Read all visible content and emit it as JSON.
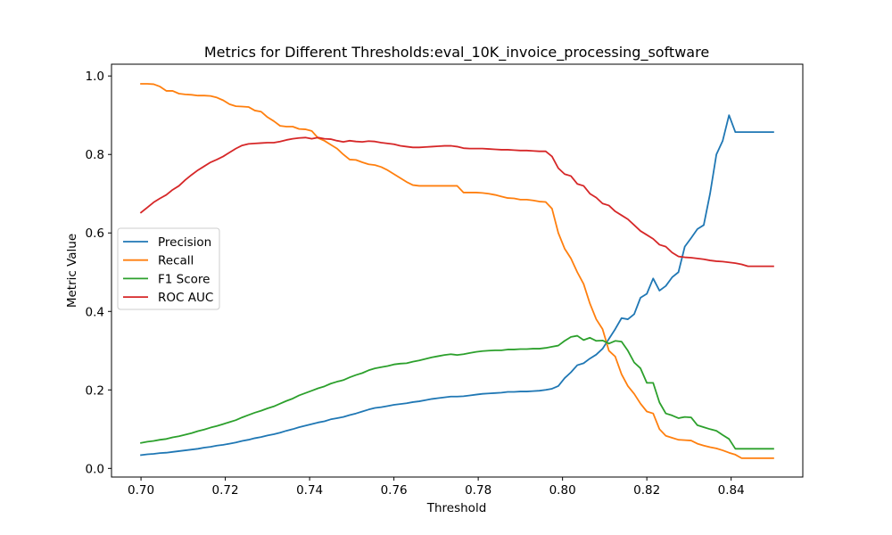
{
  "chart_data": {
    "type": "line",
    "title": "Metrics for Different Thresholds:eval_10K_invoice_processing_software",
    "xlabel": "Threshold",
    "ylabel": "Metric Value",
    "xlim": [
      0.693,
      0.857
    ],
    "ylim": [
      -0.022,
      1.03
    ],
    "xticks": [
      0.7,
      0.72,
      0.74,
      0.76,
      0.78,
      0.8,
      0.82,
      0.84
    ],
    "xtick_labels": [
      "0.70",
      "0.72",
      "0.74",
      "0.76",
      "0.78",
      "0.80",
      "0.82",
      "0.84"
    ],
    "yticks": [
      0.0,
      0.2,
      0.4,
      0.6,
      0.8,
      1.0
    ],
    "ytick_labels": [
      "0.0",
      "0.2",
      "0.4",
      "0.6",
      "0.8",
      "1.0"
    ],
    "grid": false,
    "legend_position": "center-left",
    "x": [
      0.7,
      0.7015,
      0.703,
      0.7045,
      0.706,
      0.7075,
      0.709,
      0.7105,
      0.712,
      0.7135,
      0.715,
      0.7165,
      0.718,
      0.7195,
      0.721,
      0.7225,
      0.724,
      0.7255,
      0.727,
      0.7285,
      0.73,
      0.7315,
      0.733,
      0.7345,
      0.736,
      0.7375,
      0.739,
      0.7405,
      0.742,
      0.7435,
      0.745,
      0.7465,
      0.748,
      0.7495,
      0.751,
      0.7525,
      0.754,
      0.7555,
      0.757,
      0.7585,
      0.76,
      0.7615,
      0.763,
      0.7645,
      0.766,
      0.7675,
      0.769,
      0.7705,
      0.772,
      0.7735,
      0.775,
      0.7765,
      0.778,
      0.7795,
      0.781,
      0.7825,
      0.784,
      0.7855,
      0.787,
      0.7885,
      0.79,
      0.7915,
      0.793,
      0.7945,
      0.796,
      0.7975,
      0.799,
      0.8005,
      0.802,
      0.8035,
      0.805,
      0.8065,
      0.808,
      0.8095,
      0.811,
      0.8125,
      0.814,
      0.8155,
      0.817,
      0.8185,
      0.82,
      0.8215,
      0.823,
      0.8245,
      0.826,
      0.8275,
      0.829,
      0.8305,
      0.832,
      0.8335,
      0.835,
      0.8365,
      0.838,
      0.8395,
      0.841,
      0.8425,
      0.844,
      0.8455,
      0.847,
      0.8485,
      0.85
    ],
    "series": [
      {
        "name": "Precision",
        "color": "#1f77b4",
        "values": [
          0.034,
          0.036,
          0.037,
          0.039,
          0.04,
          0.042,
          0.044,
          0.046,
          0.048,
          0.05,
          0.053,
          0.055,
          0.058,
          0.06,
          0.063,
          0.066,
          0.07,
          0.073,
          0.077,
          0.08,
          0.084,
          0.087,
          0.091,
          0.096,
          0.1,
          0.105,
          0.109,
          0.113,
          0.117,
          0.12,
          0.125,
          0.128,
          0.131,
          0.136,
          0.14,
          0.145,
          0.15,
          0.154,
          0.156,
          0.159,
          0.162,
          0.164,
          0.166,
          0.169,
          0.171,
          0.174,
          0.177,
          0.179,
          0.181,
          0.183,
          0.183,
          0.184,
          0.186,
          0.188,
          0.19,
          0.191,
          0.192,
          0.193,
          0.195,
          0.195,
          0.196,
          0.196,
          0.197,
          0.198,
          0.2,
          0.203,
          0.21,
          0.23,
          0.245,
          0.263,
          0.268,
          0.28,
          0.29,
          0.305,
          0.33,
          0.355,
          0.383,
          0.38,
          0.393,
          0.435,
          0.445,
          0.484,
          0.453,
          0.465,
          0.487,
          0.5,
          0.565,
          0.587,
          0.61,
          0.62,
          0.7,
          0.8,
          0.835,
          0.9,
          0.857,
          0.857,
          0.857,
          0.857,
          0.857,
          0.857,
          0.857
        ]
      },
      {
        "name": "Recall",
        "color": "#ff7f0e",
        "values": [
          0.98,
          0.98,
          0.979,
          0.973,
          0.962,
          0.962,
          0.955,
          0.953,
          0.952,
          0.95,
          0.95,
          0.949,
          0.945,
          0.938,
          0.928,
          0.923,
          0.922,
          0.921,
          0.912,
          0.909,
          0.895,
          0.885,
          0.873,
          0.871,
          0.871,
          0.865,
          0.864,
          0.86,
          0.842,
          0.835,
          0.825,
          0.815,
          0.8,
          0.787,
          0.786,
          0.78,
          0.775,
          0.773,
          0.768,
          0.76,
          0.75,
          0.74,
          0.73,
          0.722,
          0.72,
          0.72,
          0.72,
          0.72,
          0.72,
          0.72,
          0.72,
          0.703,
          0.703,
          0.703,
          0.702,
          0.7,
          0.697,
          0.693,
          0.689,
          0.688,
          0.685,
          0.685,
          0.683,
          0.68,
          0.679,
          0.662,
          0.6,
          0.56,
          0.535,
          0.5,
          0.47,
          0.42,
          0.38,
          0.355,
          0.3,
          0.285,
          0.24,
          0.21,
          0.19,
          0.165,
          0.145,
          0.14,
          0.1,
          0.083,
          0.078,
          0.073,
          0.072,
          0.071,
          0.063,
          0.058,
          0.054,
          0.051,
          0.046,
          0.04,
          0.035,
          0.026,
          0.026,
          0.026,
          0.026,
          0.026,
          0.026
        ]
      },
      {
        "name": "F1 Score",
        "color": "#2ca02c",
        "values": [
          0.065,
          0.068,
          0.07,
          0.073,
          0.075,
          0.079,
          0.082,
          0.086,
          0.09,
          0.095,
          0.099,
          0.104,
          0.108,
          0.113,
          0.118,
          0.123,
          0.13,
          0.136,
          0.142,
          0.147,
          0.153,
          0.158,
          0.165,
          0.172,
          0.178,
          0.186,
          0.192,
          0.198,
          0.204,
          0.209,
          0.216,
          0.221,
          0.225,
          0.232,
          0.238,
          0.243,
          0.25,
          0.255,
          0.258,
          0.261,
          0.265,
          0.267,
          0.268,
          0.272,
          0.275,
          0.279,
          0.283,
          0.286,
          0.289,
          0.291,
          0.289,
          0.291,
          0.294,
          0.297,
          0.299,
          0.3,
          0.301,
          0.301,
          0.303,
          0.303,
          0.304,
          0.304,
          0.305,
          0.305,
          0.307,
          0.31,
          0.313,
          0.325,
          0.335,
          0.338,
          0.327,
          0.333,
          0.325,
          0.326,
          0.318,
          0.325,
          0.323,
          0.3,
          0.27,
          0.255,
          0.218,
          0.218,
          0.168,
          0.14,
          0.135,
          0.128,
          0.131,
          0.13,
          0.11,
          0.105,
          0.1,
          0.096,
          0.085,
          0.075,
          0.05,
          0.05,
          0.05,
          0.05,
          0.05,
          0.05,
          0.05
        ]
      },
      {
        "name": "ROC AUC",
        "color": "#d62728",
        "values": [
          0.652,
          0.665,
          0.678,
          0.688,
          0.697,
          0.71,
          0.72,
          0.735,
          0.748,
          0.76,
          0.77,
          0.78,
          0.787,
          0.795,
          0.805,
          0.815,
          0.823,
          0.827,
          0.828,
          0.829,
          0.83,
          0.83,
          0.833,
          0.837,
          0.84,
          0.842,
          0.843,
          0.84,
          0.843,
          0.84,
          0.839,
          0.835,
          0.832,
          0.835,
          0.833,
          0.832,
          0.834,
          0.833,
          0.83,
          0.828,
          0.826,
          0.822,
          0.82,
          0.818,
          0.818,
          0.819,
          0.82,
          0.821,
          0.822,
          0.822,
          0.82,
          0.816,
          0.815,
          0.815,
          0.815,
          0.814,
          0.813,
          0.812,
          0.812,
          0.811,
          0.81,
          0.81,
          0.809,
          0.808,
          0.808,
          0.795,
          0.765,
          0.75,
          0.745,
          0.725,
          0.72,
          0.7,
          0.69,
          0.675,
          0.67,
          0.655,
          0.645,
          0.635,
          0.62,
          0.605,
          0.595,
          0.585,
          0.57,
          0.565,
          0.55,
          0.54,
          0.538,
          0.537,
          0.535,
          0.533,
          0.53,
          0.528,
          0.527,
          0.525,
          0.523,
          0.52,
          0.515,
          0.515,
          0.515,
          0.515,
          0.515
        ]
      }
    ]
  }
}
